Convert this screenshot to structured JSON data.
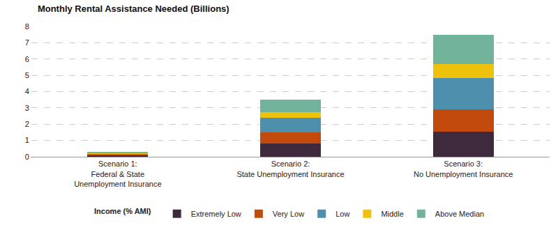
{
  "chart_data": {
    "type": "bar",
    "title": "Monthly Rental Assistance Needed (Billions)",
    "categories": [
      "Scenario 1:\nFederal & State\nUnemployment Insurance",
      "Scenario 2:\nState Unemployment Insurance",
      "Scenario 3:\nNo Unemployment Insurance"
    ],
    "series": [
      {
        "name": "Extremely Low",
        "color": "#3f2a3d",
        "values": [
          0.1,
          0.82,
          1.55
        ]
      },
      {
        "name": "Very Low",
        "color": "#c24a0c",
        "values": [
          0.03,
          0.68,
          1.37
        ]
      },
      {
        "name": "Low",
        "color": "#4e8fae",
        "values": [
          0.05,
          0.9,
          1.9
        ]
      },
      {
        "name": "Middle",
        "color": "#eec20b",
        "values": [
          0.02,
          0.35,
          0.86
        ]
      },
      {
        "name": "Above Median",
        "color": "#72b39b",
        "values": [
          0.08,
          0.75,
          1.8
        ]
      }
    ],
    "legend_title": "Income (% AMI)",
    "ylim": [
      0,
      8
    ],
    "yticks": [
      0,
      1,
      2,
      3,
      4,
      5,
      6,
      7,
      8
    ],
    "grid": true,
    "stacked": true,
    "legend": "bottom"
  }
}
